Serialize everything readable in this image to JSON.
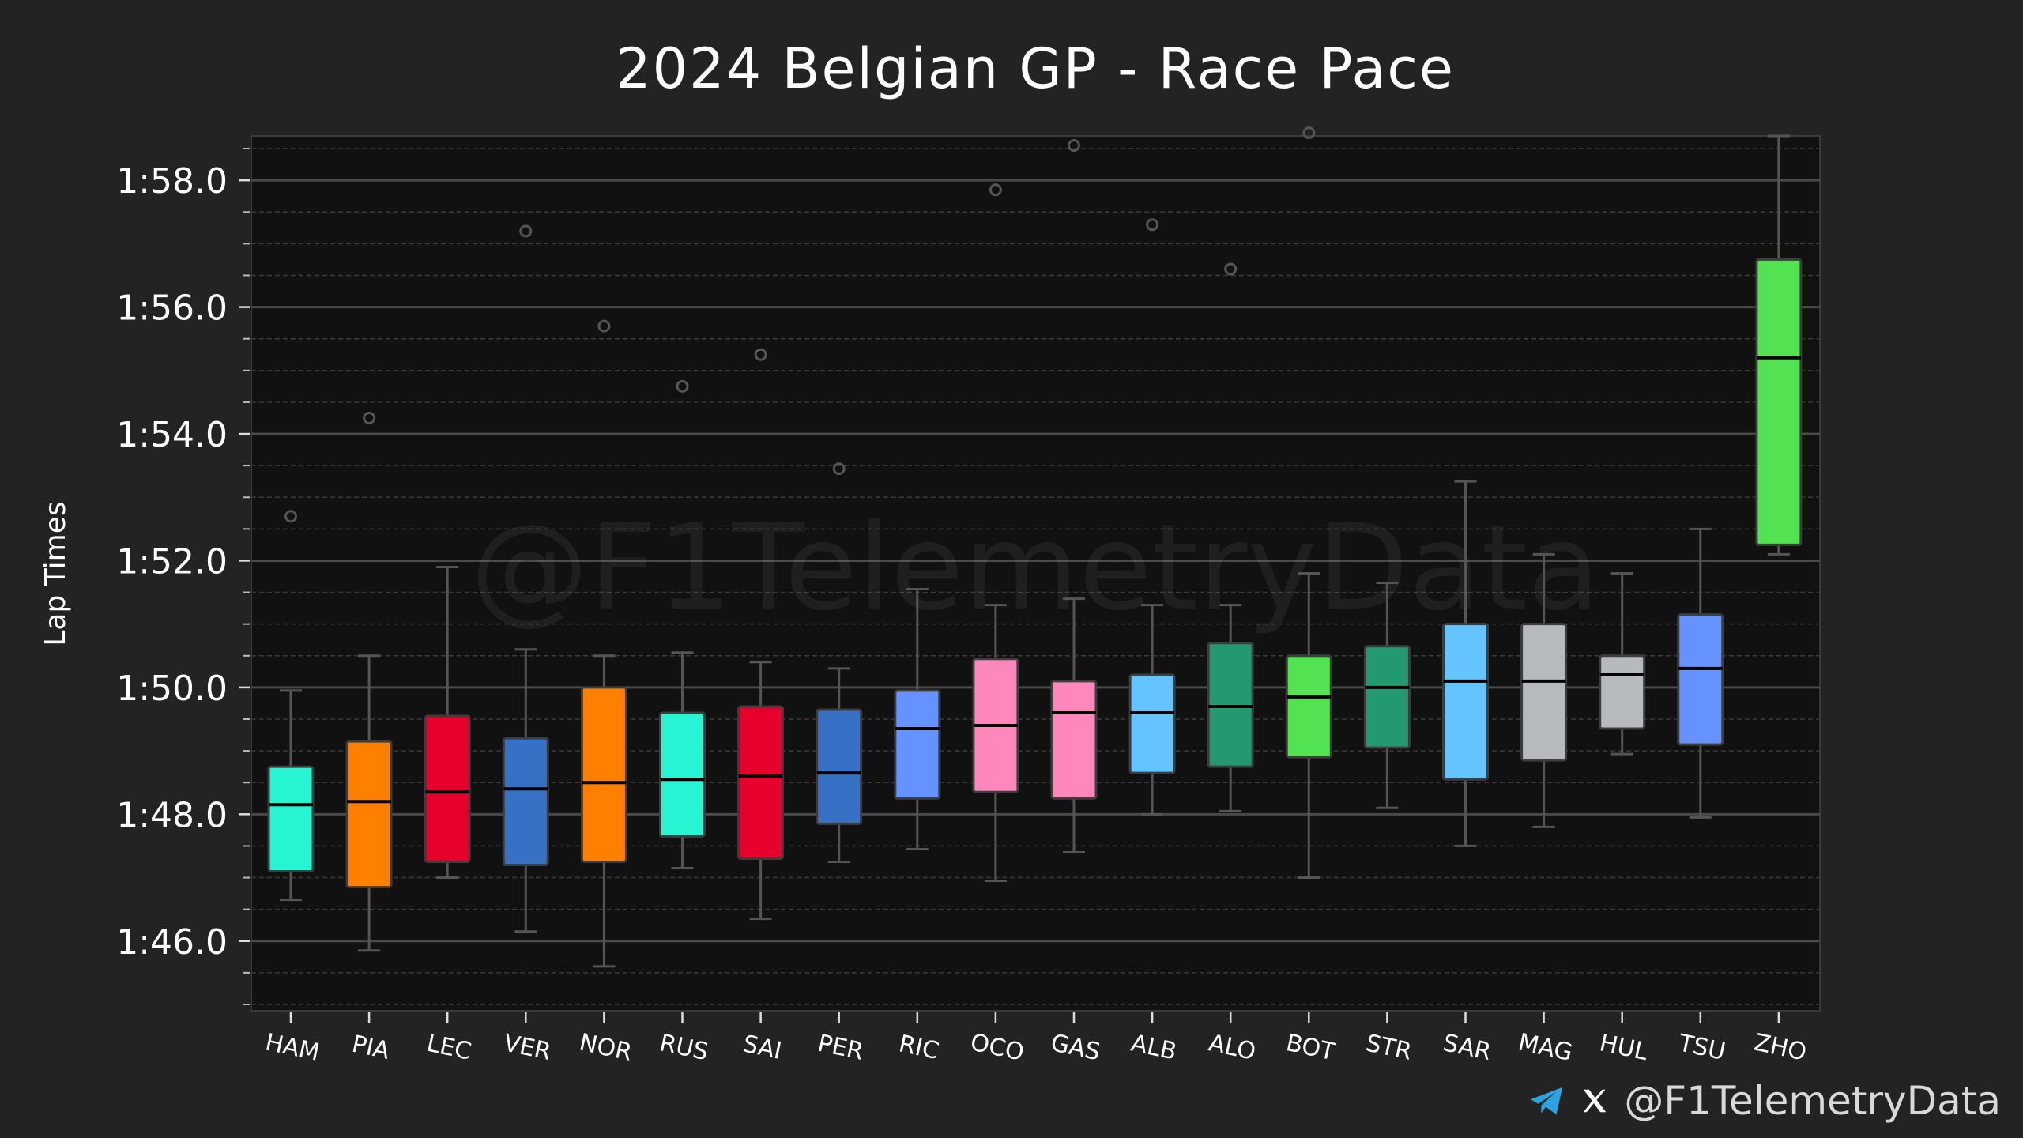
{
  "watermark": "@F1TelemetryData",
  "footer": {
    "handle": "@F1TelemetryData",
    "icons": [
      "telegram-icon",
      "x-icon"
    ]
  },
  "colors": {
    "background": "#232323",
    "plot_background": "#111111",
    "median": "#000000",
    "whisker": "#555555"
  },
  "chart_data": {
    "type": "box",
    "title": "2024 Belgian GP - Race Pace",
    "ylabel": "Lap Times",
    "xlabel": "",
    "ylim": [
      104.9,
      118.7
    ],
    "yticks": [
      106,
      108,
      110,
      112,
      114,
      116,
      118
    ],
    "ytick_labels": [
      "1:46.0",
      "1:48.0",
      "1:50.0",
      "1:52.0",
      "1:54.0",
      "1:56.0",
      "1:58.0"
    ],
    "grid": true,
    "categories": [
      "HAM",
      "PIA",
      "LEC",
      "VER",
      "NOR",
      "RUS",
      "SAI",
      "PER",
      "RIC",
      "OCO",
      "GAS",
      "ALB",
      "ALO",
      "BOT",
      "STR",
      "SAR",
      "MAG",
      "HUL",
      "TSU",
      "ZHO"
    ],
    "boxes": [
      {
        "driver": "HAM",
        "color": "#27F4D2",
        "whislo": 106.65,
        "q1": 107.1,
        "med": 108.15,
        "q3": 108.75,
        "whishi": 109.95,
        "fliers": [
          112.7
        ]
      },
      {
        "driver": "PIA",
        "color": "#FF8000",
        "whislo": 105.85,
        "q1": 106.85,
        "med": 108.2,
        "q3": 109.15,
        "whishi": 110.5,
        "fliers": [
          114.25
        ]
      },
      {
        "driver": "LEC",
        "color": "#E8002D",
        "whislo": 107.0,
        "q1": 107.25,
        "med": 108.35,
        "q3": 109.55,
        "whishi": 111.9,
        "fliers": []
      },
      {
        "driver": "VER",
        "color": "#3671C6",
        "whislo": 106.15,
        "q1": 107.2,
        "med": 108.4,
        "q3": 109.2,
        "whishi": 110.6,
        "fliers": [
          117.2
        ]
      },
      {
        "driver": "NOR",
        "color": "#FF8000",
        "whislo": 105.6,
        "q1": 107.25,
        "med": 108.5,
        "q3": 110.0,
        "whishi": 110.5,
        "fliers": [
          115.7
        ]
      },
      {
        "driver": "RUS",
        "color": "#27F4D2",
        "whislo": 107.15,
        "q1": 107.65,
        "med": 108.55,
        "q3": 109.6,
        "whishi": 110.55,
        "fliers": [
          114.75
        ]
      },
      {
        "driver": "SAI",
        "color": "#E8002D",
        "whislo": 106.35,
        "q1": 107.3,
        "med": 108.6,
        "q3": 109.7,
        "whishi": 110.4,
        "fliers": [
          115.25
        ]
      },
      {
        "driver": "PER",
        "color": "#3671C6",
        "whislo": 107.25,
        "q1": 107.85,
        "med": 108.65,
        "q3": 109.65,
        "whishi": 110.3,
        "fliers": [
          113.45
        ]
      },
      {
        "driver": "RIC",
        "color": "#6692FF",
        "whislo": 107.45,
        "q1": 108.25,
        "med": 109.35,
        "q3": 109.95,
        "whishi": 111.55,
        "fliers": []
      },
      {
        "driver": "OCO",
        "color": "#FF87BC",
        "whislo": 106.95,
        "q1": 108.35,
        "med": 109.4,
        "q3": 110.45,
        "whishi": 111.3,
        "fliers": [
          117.85
        ]
      },
      {
        "driver": "GAS",
        "color": "#FF87BC",
        "whislo": 107.4,
        "q1": 108.25,
        "med": 109.6,
        "q3": 110.1,
        "whishi": 111.4,
        "fliers": [
          118.55
        ]
      },
      {
        "driver": "ALB",
        "color": "#64C4FF",
        "whislo": 108.0,
        "q1": 108.65,
        "med": 109.6,
        "q3": 110.2,
        "whishi": 111.3,
        "fliers": [
          117.3
        ]
      },
      {
        "driver": "ALO",
        "color": "#229971",
        "whislo": 108.05,
        "q1": 108.75,
        "med": 109.7,
        "q3": 110.7,
        "whishi": 111.3,
        "fliers": [
          116.6
        ]
      },
      {
        "driver": "BOT",
        "color": "#52E252",
        "whislo": 107.0,
        "q1": 108.9,
        "med": 109.85,
        "q3": 110.5,
        "whishi": 111.8,
        "fliers": [
          118.75
        ]
      },
      {
        "driver": "STR",
        "color": "#229971",
        "whislo": 108.1,
        "q1": 109.05,
        "med": 110.0,
        "q3": 110.65,
        "whishi": 111.65,
        "fliers": []
      },
      {
        "driver": "SAR",
        "color": "#64C4FF",
        "whislo": 107.5,
        "q1": 108.55,
        "med": 110.1,
        "q3": 111.0,
        "whishi": 113.25,
        "fliers": []
      },
      {
        "driver": "MAG",
        "color": "#B6BABD",
        "whislo": 107.8,
        "q1": 108.85,
        "med": 110.1,
        "q3": 111.0,
        "whishi": 112.1,
        "fliers": []
      },
      {
        "driver": "HUL",
        "color": "#B6BABD",
        "whislo": 108.95,
        "q1": 109.35,
        "med": 110.2,
        "q3": 110.5,
        "whishi": 111.8,
        "fliers": []
      },
      {
        "driver": "TSU",
        "color": "#6692FF",
        "whislo": 107.95,
        "q1": 109.1,
        "med": 110.3,
        "q3": 111.15,
        "whishi": 112.5,
        "fliers": []
      },
      {
        "driver": "ZHO",
        "color": "#52E252",
        "whislo": 112.1,
        "q1": 112.25,
        "med": 115.2,
        "q3": 116.75,
        "whishi": 118.7,
        "fliers": []
      }
    ]
  }
}
